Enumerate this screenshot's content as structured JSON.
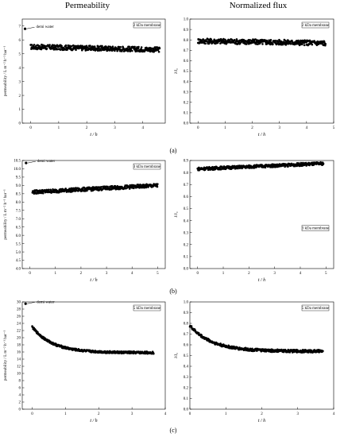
{
  "column_titles": [
    "Permeability",
    "Normalized flux"
  ],
  "row_labels": [
    "(a)",
    "(b)",
    "(c)"
  ],
  "chart_data": [
    {
      "id": "a-left",
      "type": "scatter",
      "ylabel": "permeability / L m⁻² h⁻¹ bar⁻¹",
      "xlabel": "t / h",
      "xlim": [
        -0.3,
        4.8
      ],
      "ylim": [
        0,
        7.5
      ],
      "xticks": [
        0,
        1,
        2,
        3,
        4
      ],
      "yticks": [
        0,
        1,
        2,
        3,
        4,
        5,
        6,
        7
      ],
      "grid": false,
      "legend": "2 kDa membrane",
      "legend_position": "top-right",
      "annotation": {
        "text": "demi water",
        "x": -0.2,
        "y": 6.8
      },
      "series_profile": {
        "x_start": 0.0,
        "x_end": 4.6,
        "y_start": 5.5,
        "y_end": 5.3,
        "noise": 0.35,
        "points": 400
      }
    },
    {
      "id": "a-right",
      "type": "scatter",
      "ylabel": "J/J₀",
      "xlabel": "t / h",
      "xlim": [
        -0.3,
        5.0
      ],
      "ylim": [
        0,
        1.0
      ],
      "xticks": [
        0,
        1,
        2,
        3,
        4,
        5
      ],
      "yticks": [
        0.0,
        0.1,
        0.2,
        0.3,
        0.4,
        0.5,
        0.6,
        0.7,
        0.8,
        0.9,
        1.0
      ],
      "grid": false,
      "legend": "2 kDa membrane",
      "legend_position": "top-right",
      "series_profile": {
        "x_start": 0.0,
        "x_end": 4.7,
        "y_start": 0.79,
        "y_end": 0.77,
        "noise": 0.05,
        "points": 400
      }
    },
    {
      "id": "b-left",
      "type": "scatter",
      "ylabel": "permeability / L m⁻² h⁻¹ bar⁻¹",
      "xlabel": "t / h",
      "xlim": [
        -0.3,
        5.3
      ],
      "ylim": [
        4.0,
        10.5
      ],
      "xticks": [
        0,
        1,
        2,
        3,
        4,
        5
      ],
      "yticks": [
        4.0,
        4.5,
        5.0,
        5.5,
        6.0,
        6.5,
        7.0,
        7.5,
        8.0,
        8.5,
        9.0,
        9.5,
        10.0,
        10.5
      ],
      "grid": false,
      "legend": "3 kDa membrane",
      "legend_position": "top-right",
      "annotation": {
        "text": "demi water",
        "x": -0.15,
        "y": 10.35
      },
      "series_profile": {
        "x_start": 0.1,
        "x_end": 5.0,
        "y_start": 8.6,
        "y_end": 9.0,
        "noise": 0.22,
        "points": 400
      }
    },
    {
      "id": "b-right",
      "type": "scatter",
      "ylabel": "J/J₀",
      "xlabel": "t / h",
      "xlim": [
        -0.3,
        5.3
      ],
      "ylim": [
        0,
        0.9
      ],
      "xticks": [
        0,
        1,
        2,
        3,
        4,
        5
      ],
      "yticks": [
        0.0,
        0.1,
        0.2,
        0.3,
        0.4,
        0.5,
        0.6,
        0.7,
        0.8,
        0.9
      ],
      "grid": false,
      "legend": "3 kDa membrane",
      "legend_position": "middle-right",
      "series_profile": {
        "x_start": 0.0,
        "x_end": 4.9,
        "y_start": 0.83,
        "y_end": 0.875,
        "noise": 0.025,
        "points": 400
      }
    },
    {
      "id": "c-left",
      "type": "scatter",
      "ylabel": "permeability / L m⁻² h⁻¹ bar⁻¹",
      "xlabel": "t / h",
      "xlim": [
        -0.3,
        4.0
      ],
      "ylim": [
        0,
        30
      ],
      "xticks": [
        0,
        1,
        2,
        3,
        4
      ],
      "yticks": [
        0,
        2,
        4,
        6,
        8,
        10,
        12,
        14,
        16,
        18,
        20,
        22,
        24,
        26,
        28,
        30
      ],
      "grid": false,
      "legend": "5 kDa membrane",
      "legend_position": "top-right",
      "annotation": {
        "text": "demi water",
        "x": -0.2,
        "y": 29.5
      },
      "series_profile": {
        "x_start": 0.0,
        "x_end": 3.65,
        "y_start": 23.0,
        "y_end": 15.8,
        "noise": 0.6,
        "points": 400,
        "decay": true
      }
    },
    {
      "id": "c-right",
      "type": "scatter",
      "ylabel": "J/J₀",
      "xlabel": "t / h",
      "xlim": [
        0,
        4.0
      ],
      "ylim": [
        0,
        1.0
      ],
      "xticks": [
        0,
        1,
        2,
        3,
        4
      ],
      "yticks": [
        0.0,
        0.1,
        0.2,
        0.3,
        0.4,
        0.5,
        0.6,
        0.7,
        0.8,
        0.9,
        1.0
      ],
      "grid": false,
      "legend": "5 kDa membrane",
      "legend_position": "top-right",
      "series_profile": {
        "x_start": 0.0,
        "x_end": 3.7,
        "y_start": 0.78,
        "y_end": 0.54,
        "noise": 0.025,
        "points": 400,
        "decay": true
      }
    }
  ]
}
